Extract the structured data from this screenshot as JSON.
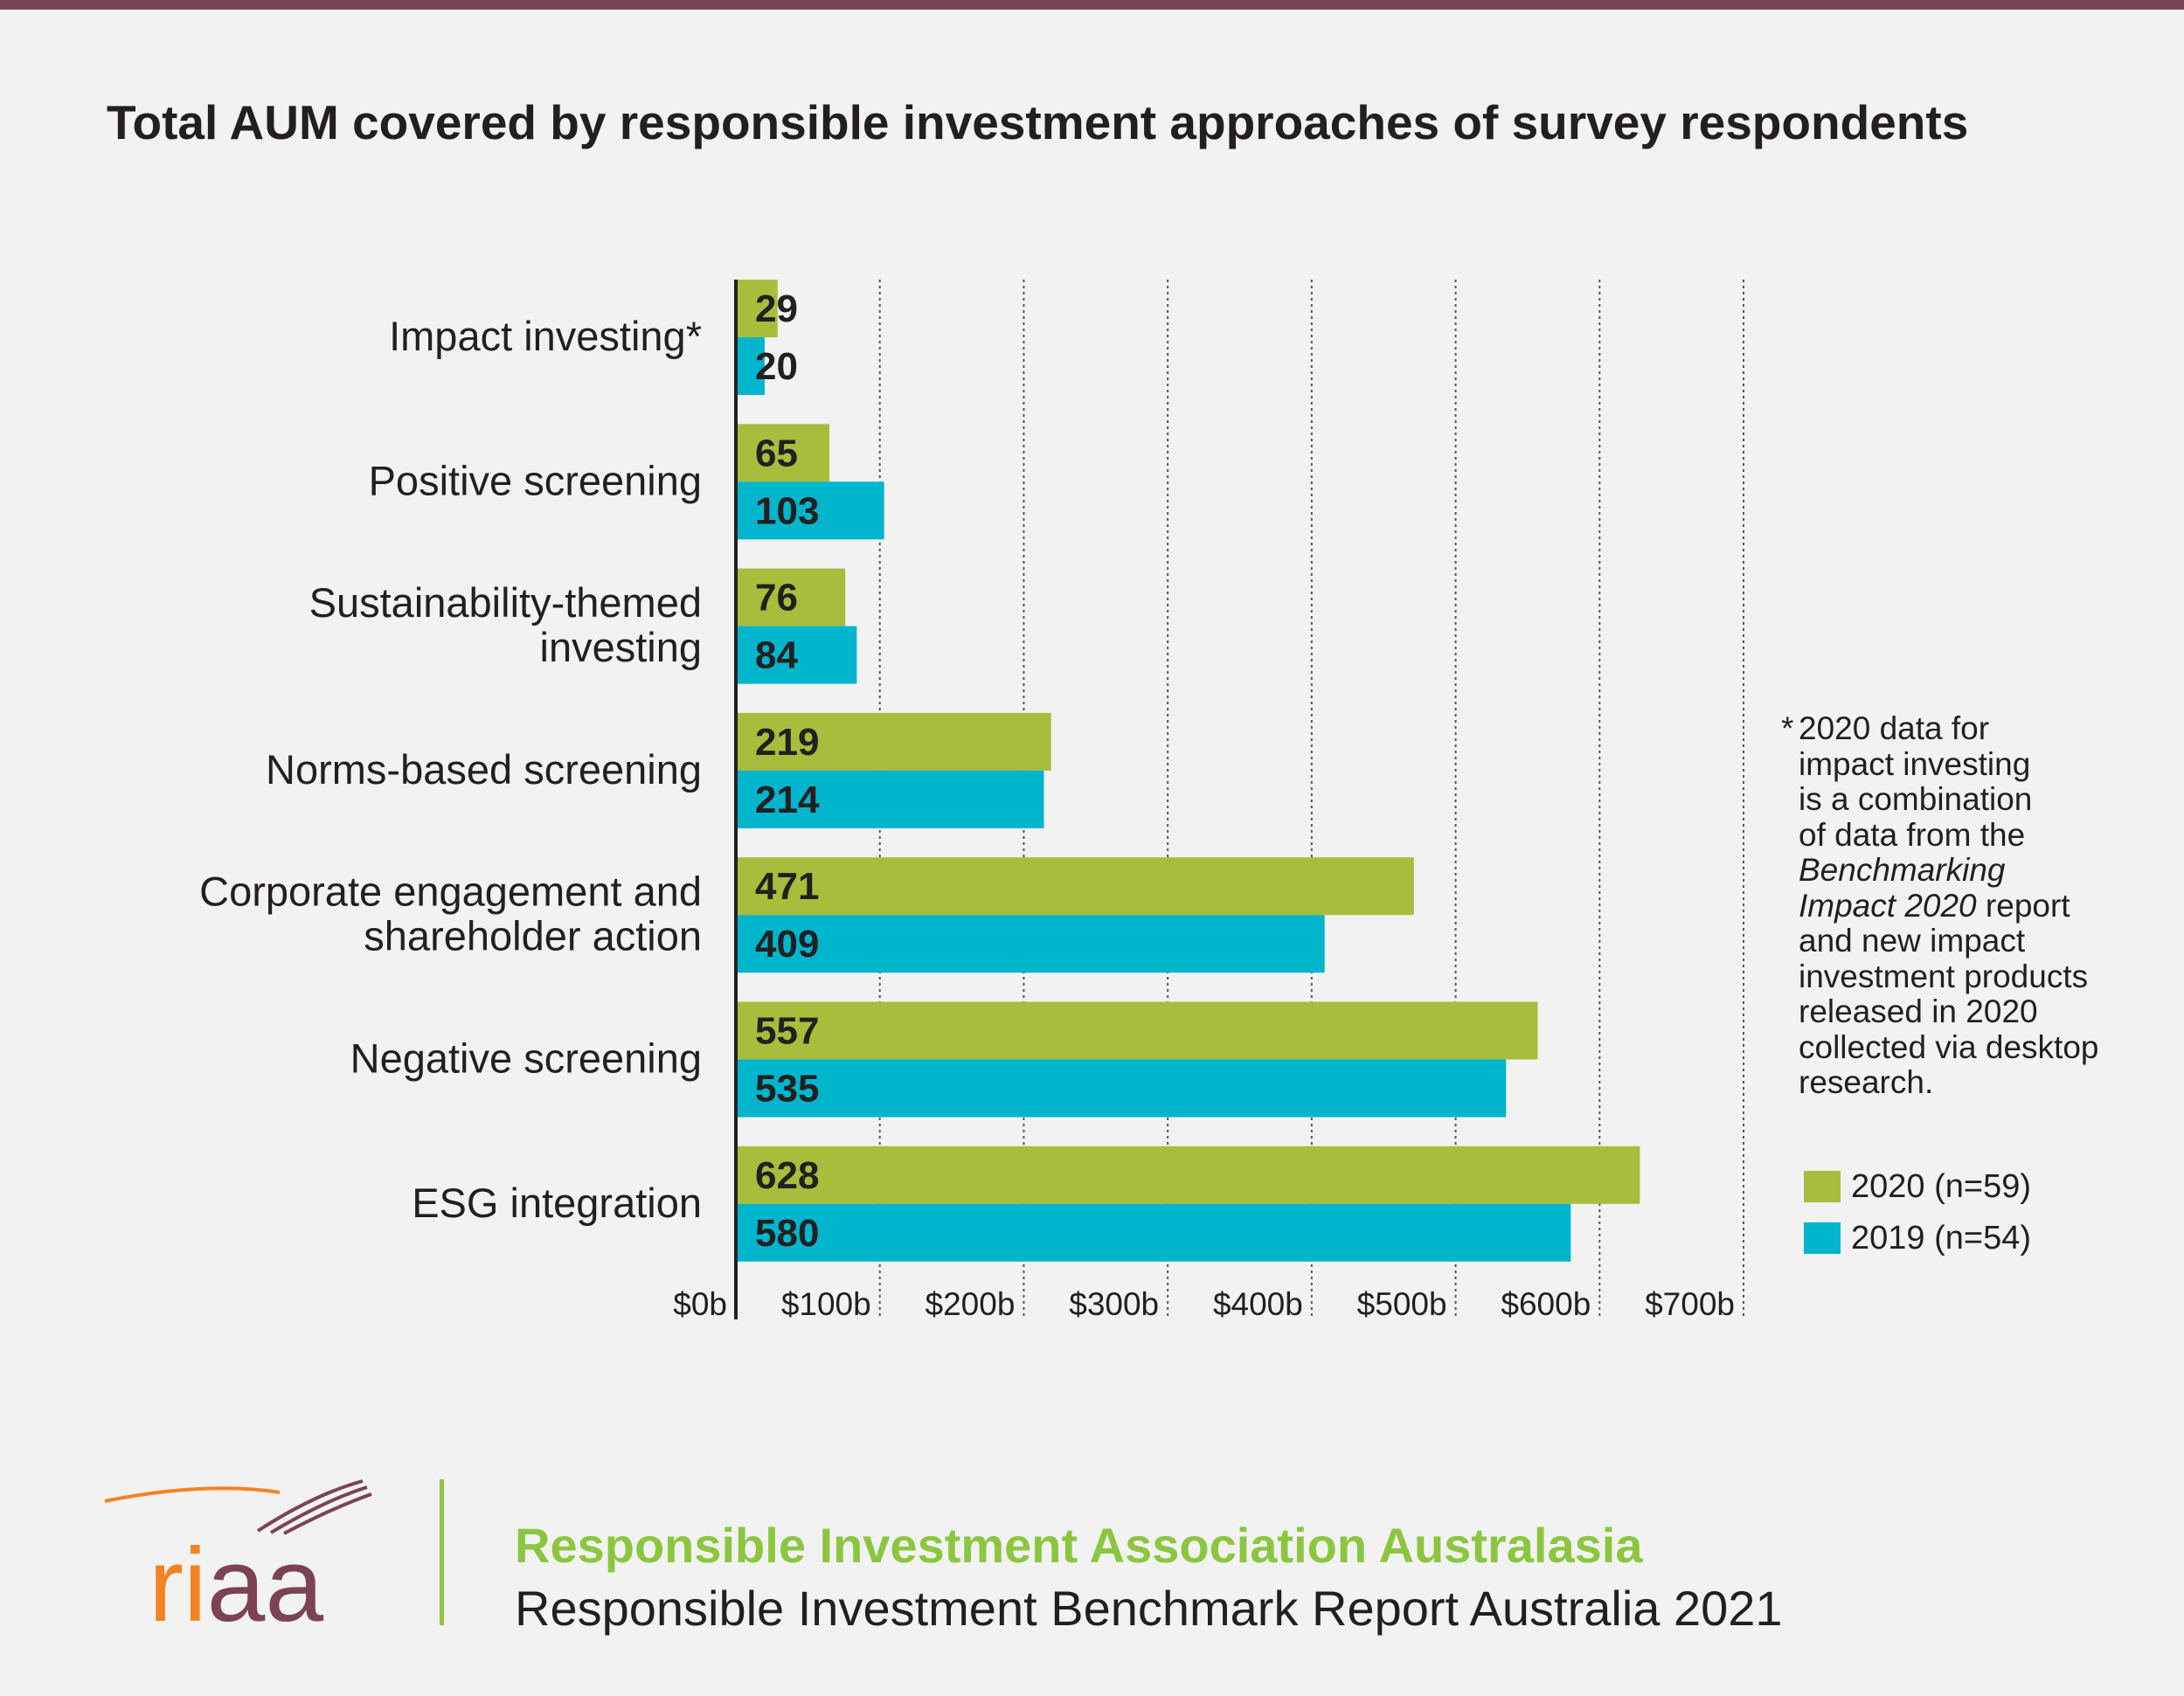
{
  "title": "Total AUM covered by responsible investment approaches of survey respondents",
  "colors": {
    "series_2020": "#a6be3b",
    "series_2019": "#00b5cc",
    "axis": "#231f20",
    "grid": "#555555",
    "text": "#231f20",
    "brand_green": "#8cc63f",
    "brand_maroon": "#7c4352",
    "brand_orange": "#f58220"
  },
  "chart_data": {
    "type": "bar",
    "orientation": "horizontal",
    "title": "Total AUM covered by responsible investment approaches of survey respondents",
    "categories": [
      [
        "Impact investing*"
      ],
      [
        "Positive screening"
      ],
      [
        "Sustainability-themed",
        "investing"
      ],
      [
        "Norms-based screening"
      ],
      [
        "Corporate engagement and",
        "shareholder action"
      ],
      [
        "Negative screening"
      ],
      [
        "ESG integration"
      ]
    ],
    "series": [
      {
        "name": "2020 (n=59)",
        "color": "#a6be3b",
        "values": [
          29,
          65,
          76,
          219,
          471,
          557,
          628
        ]
      },
      {
        "name": "2019 (n=54)",
        "color": "#00b5cc",
        "values": [
          20,
          103,
          84,
          214,
          409,
          535,
          580
        ]
      }
    ],
    "xlim": [
      0,
      700
    ],
    "x_ticks": [
      0,
      100,
      200,
      300,
      400,
      500,
      600,
      700
    ],
    "x_tick_labels": [
      "$0b",
      "$100b",
      "$200b",
      "$300b",
      "$400b",
      "$500b",
      "$600b",
      "$700b"
    ],
    "xlabel": "",
    "ylabel": "",
    "grid": "vertical dotted",
    "legend": "right"
  },
  "note": {
    "star": "*",
    "lines": [
      [
        {
          "t": "2020 data for"
        }
      ],
      [
        {
          "t": "impact investing"
        }
      ],
      [
        {
          "t": "is a combination"
        }
      ],
      [
        {
          "t": "of data from the"
        }
      ],
      [
        {
          "t": "Benchmarking",
          "i": true
        }
      ],
      [
        {
          "t": "Impact 2020",
          "i": true
        },
        {
          "t": " report"
        }
      ],
      [
        {
          "t": "and new impact"
        }
      ],
      [
        {
          "t": "investment products"
        }
      ],
      [
        {
          "t": "released in 2020"
        }
      ],
      [
        {
          "t": "collected via desktop"
        }
      ],
      [
        {
          "t": "research."
        }
      ]
    ]
  },
  "legend": [
    {
      "label": "2020 (n=59)",
      "color": "#a6be3b"
    },
    {
      "label": "2019 (n=54)",
      "color": "#00b5cc"
    }
  ],
  "footer": {
    "logo_text": "riaa",
    "org_name": "Responsible Investment Association Australasia",
    "report_name": "Responsible Investment Benchmark Report Australia 2021"
  }
}
